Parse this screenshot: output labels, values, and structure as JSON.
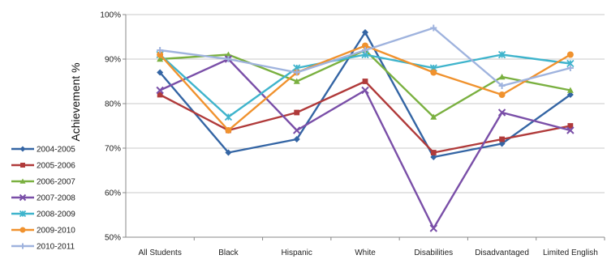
{
  "chart_data": {
    "type": "line",
    "title": "",
    "xlabel": "",
    "ylabel": "Achievement %",
    "ylim": [
      50,
      100
    ],
    "yticks": [
      "50%",
      "60%",
      "70%",
      "80%",
      "90%",
      "100%"
    ],
    "ytick_values": [
      50,
      60,
      70,
      80,
      90,
      100
    ],
    "grid": "horizontal",
    "legend_placement": "left",
    "categories": [
      "All Students",
      "Black",
      "Hispanic",
      "White",
      "Disabilities",
      "Disadvantaged",
      "Limited English"
    ],
    "series": [
      {
        "name": "2004-2005",
        "color": "#3465a4",
        "marker": "diamond",
        "values": [
          87,
          69,
          72,
          96,
          68,
          71,
          82
        ]
      },
      {
        "name": "2005-2006",
        "color": "#b03a3a",
        "marker": "square",
        "values": [
          82,
          74,
          78,
          85,
          69,
          72,
          75
        ]
      },
      {
        "name": "2006-2007",
        "color": "#7ab040",
        "marker": "triangle",
        "values": [
          90,
          91,
          85,
          92,
          77,
          86,
          83
        ]
      },
      {
        "name": "2007-2008",
        "color": "#7a4fa8",
        "marker": "x",
        "values": [
          83,
          90,
          74,
          83,
          52,
          78,
          74
        ]
      },
      {
        "name": "2008-2009",
        "color": "#3fb4cc",
        "marker": "star",
        "values": [
          91,
          77,
          88,
          91,
          88,
          91,
          89
        ]
      },
      {
        "name": "2009-2010",
        "color": "#f0922e",
        "marker": "circle",
        "values": [
          91,
          74,
          87,
          93,
          87,
          82,
          91
        ]
      },
      {
        "name": "2010-2011",
        "color": "#9fb3de",
        "marker": "plus",
        "values": [
          92,
          90,
          87,
          92,
          97,
          84,
          88
        ]
      }
    ]
  }
}
